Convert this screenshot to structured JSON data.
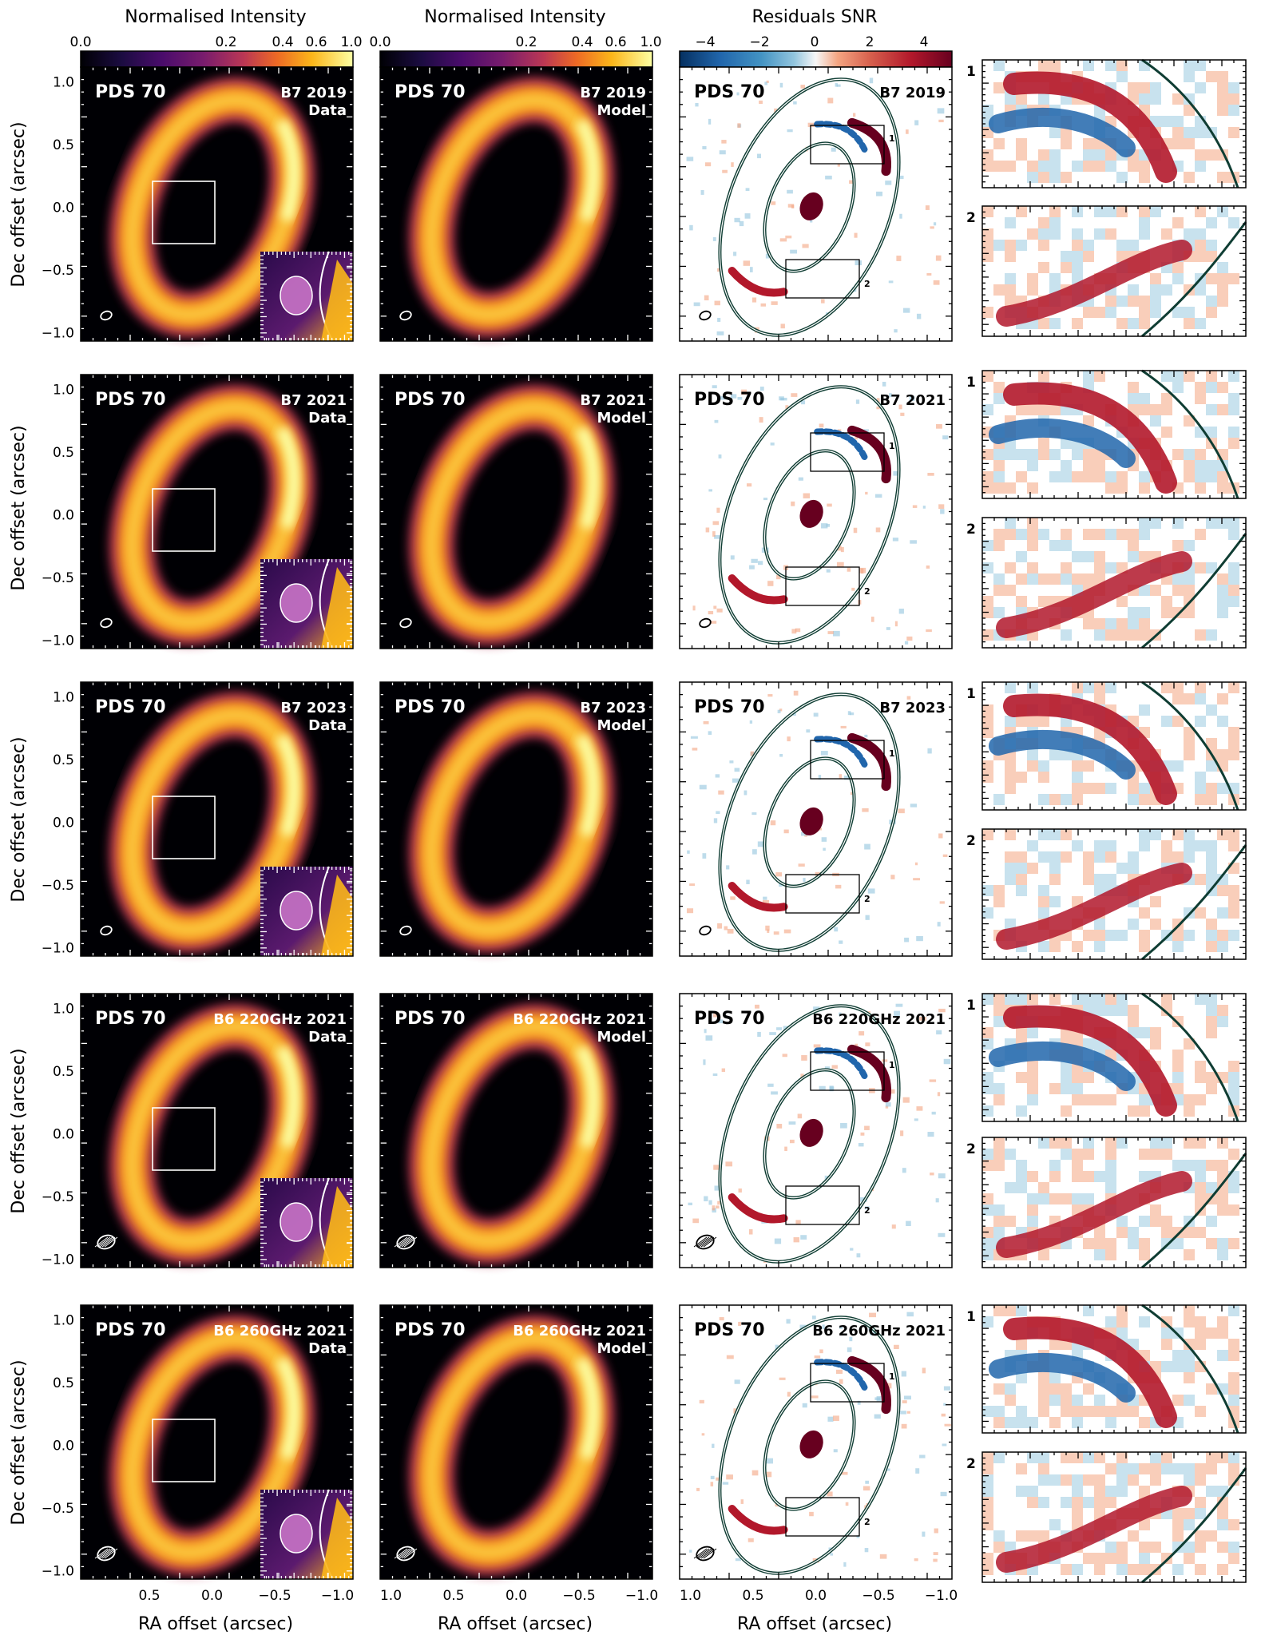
{
  "colorbars": [
    {
      "title": "Normalised Intensity",
      "ticks": [
        "0.0",
        "0.2",
        "0.4",
        "0.6",
        "1.0"
      ],
      "scale": "power"
    },
    {
      "title": "Normalised Intensity",
      "ticks": [
        "0.0",
        "0.2",
        "0.4",
        "0.6",
        "1.0"
      ],
      "scale": "power"
    },
    {
      "title": "Residuals SNR",
      "ticks": [
        "−4",
        "−2",
        "0",
        "2",
        "4"
      ],
      "scale": "linear"
    }
  ],
  "colors": {
    "inferno_dark": "#000004",
    "inferno_mid": "#bb3754",
    "inferno_bright": "#fcffa4",
    "rdbu_blue": "#2166ac",
    "rdbu_red": "#b2182b",
    "ellipse": "#0f3d33"
  },
  "axes": {
    "ylabel": "Dec offset  (arcsec)",
    "xlabel": "RA offset  (arcsec)",
    "yticks": [
      "1.0",
      "0.5",
      "0.0",
      "−0.5",
      "−1.0"
    ],
    "xticks_col1": [
      "0.5",
      "0.0",
      "−0.5",
      "−1.0"
    ],
    "xticks_col23": [
      "1.0",
      "0.5",
      "0.0",
      "−0.5",
      "−1.0"
    ]
  },
  "target": "PDS 70",
  "rows": [
    {
      "label": "B7 2019",
      "data_tag": "Data",
      "model_tag": "Model"
    },
    {
      "label": "B7 2021",
      "data_tag": "Data",
      "model_tag": "Model"
    },
    {
      "label": "B7 2023",
      "data_tag": "Data",
      "model_tag": "Model"
    },
    {
      "label": "B6 220GHz 2021",
      "data_tag": "Data",
      "model_tag": "Model"
    },
    {
      "label": "B6 260GHz 2021",
      "data_tag": "Data",
      "model_tag": "Model"
    }
  ],
  "residual_boxes": [
    "1",
    "2"
  ],
  "zoom_labels": [
    "1",
    "2"
  ]
}
